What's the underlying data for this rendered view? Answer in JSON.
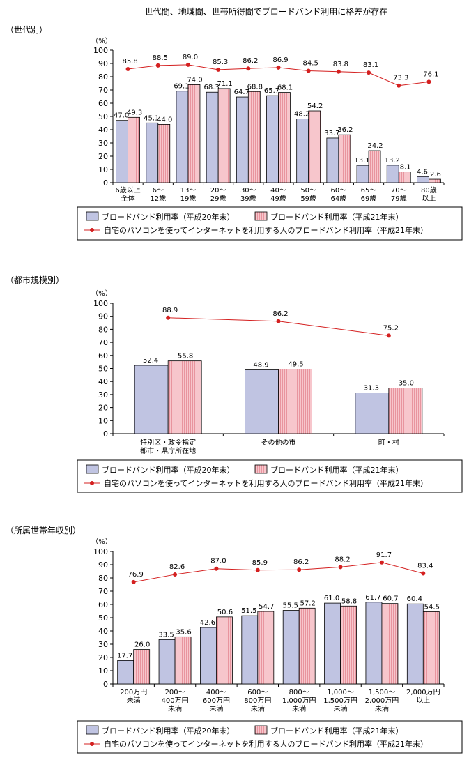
{
  "title": "世代間、地域間、世帯所得間でブロードバンド利用に格差が存在",
  "legend": {
    "bar20": "ブロードバンド利用率（平成20年末）",
    "bar21": "ブロードバンド利用率（平成21年末）",
    "line": "自宅のパソコンを使ってインターネットを利用する人のブロードバンド利用率（平成21年末）"
  },
  "colors": {
    "bar20": "#c0c4e2",
    "bar21": "#f4b4bc",
    "line": "#d42020"
  },
  "chart_data": [
    {
      "type": "bar",
      "section_label": "（世代別）",
      "ylabel": "（%）",
      "ylim": [
        0,
        100
      ],
      "yticks": [
        0,
        10,
        20,
        30,
        40,
        50,
        60,
        70,
        80,
        90,
        100
      ],
      "categories": [
        "6歳以上\n全体",
        "6～\n12歳",
        "13～\n19歳",
        "20～\n29歳",
        "30～\n39歳",
        "40～\n49歳",
        "50～\n59歳",
        "60～\n64歳",
        "65～\n69歳",
        "70～\n79歳",
        "80歳\n以上"
      ],
      "series": [
        {
          "name": "ブロードバンド利用率（平成20年末）",
          "kind": "bar",
          "values": [
            47.0,
            45.1,
            69.1,
            68.3,
            64.7,
            65.7,
            48.2,
            33.7,
            13.1,
            13.2,
            4.6
          ]
        },
        {
          "name": "ブロードバンド利用率（平成21年末）",
          "kind": "bar",
          "values": [
            49.3,
            44.0,
            74.0,
            71.1,
            68.8,
            68.1,
            54.2,
            36.2,
            24.2,
            8.1,
            2.6
          ]
        },
        {
          "name": "自宅のパソコンを使ってインターネットを利用する人のブロードバンド利用率（平成21年末）",
          "kind": "line",
          "values": [
            85.8,
            88.5,
            89.0,
            85.3,
            86.2,
            86.9,
            84.5,
            83.8,
            83.1,
            73.3,
            76.1
          ]
        }
      ]
    },
    {
      "type": "bar",
      "section_label": "（都市規模別）",
      "ylabel": "（%）",
      "ylim": [
        0,
        100
      ],
      "yticks": [
        0,
        10,
        20,
        30,
        40,
        50,
        60,
        70,
        80,
        90,
        100
      ],
      "categories": [
        "特別区・政令指定\n都市・県庁所在地",
        "その他の市",
        "町・村"
      ],
      "series": [
        {
          "name": "ブロードバンド利用率（平成20年末）",
          "kind": "bar",
          "values": [
            52.4,
            48.9,
            31.3
          ]
        },
        {
          "name": "ブロードバンド利用率（平成21年末）",
          "kind": "bar",
          "values": [
            55.8,
            49.5,
            35.0
          ]
        },
        {
          "name": "自宅のパソコンを使ってインターネットを利用する人のブロードバンド利用率（平成21年末）",
          "kind": "line",
          "values": [
            88.9,
            86.2,
            75.2
          ]
        }
      ]
    },
    {
      "type": "bar",
      "section_label": "（所属世帯年収別）",
      "ylabel": "（%）",
      "ylim": [
        0,
        100
      ],
      "yticks": [
        0,
        10,
        20,
        30,
        40,
        50,
        60,
        70,
        80,
        90,
        100
      ],
      "categories": [
        "200万円\n未満",
        "200～\n400万円\n未満",
        "400～\n600万円\n未満",
        "600～\n800万円\n未満",
        "800～\n1,000万円\n未満",
        "1,000～\n1,500万円\n未満",
        "1,500～\n2,000万円\n未満",
        "2,000万円\n以上"
      ],
      "series": [
        {
          "name": "ブロードバンド利用率（平成20年末）",
          "kind": "bar",
          "values": [
            17.7,
            33.5,
            42.6,
            51.5,
            55.5,
            61.0,
            61.7,
            60.4
          ]
        },
        {
          "name": "ブロードバンド利用率（平成21年末）",
          "kind": "bar",
          "values": [
            26.0,
            35.6,
            50.6,
            54.7,
            57.2,
            58.8,
            60.7,
            54.5
          ]
        },
        {
          "name": "自宅のパソコンを使ってインターネットを利用する人のブロードバンド利用率（平成21年末）",
          "kind": "line",
          "values": [
            76.9,
            82.6,
            87.0,
            85.9,
            86.2,
            88.2,
            91.7,
            83.4
          ]
        }
      ]
    }
  ]
}
